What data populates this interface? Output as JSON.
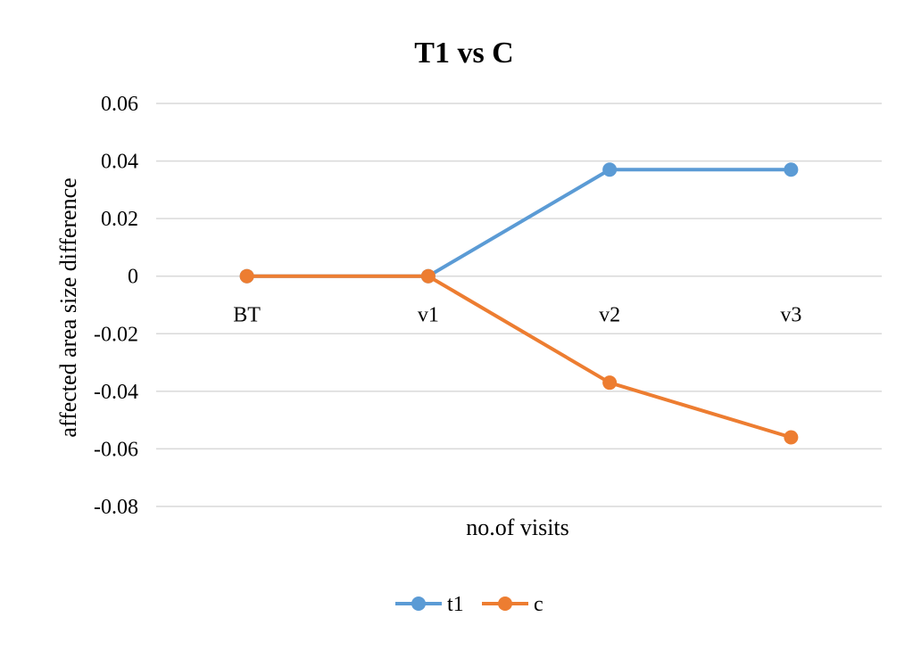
{
  "chart_data": {
    "type": "line",
    "title": "T1 vs C",
    "xlabel": "no.of visits",
    "ylabel": "affected area size difference",
    "categories": [
      "BT",
      "v1",
      "v2",
      "v3"
    ],
    "yticks": [
      "0.06",
      "0.04",
      "0.02",
      "0",
      "-0.02",
      "-0.04",
      "-0.06",
      "-0.08"
    ],
    "ylim": [
      -0.08,
      0.06
    ],
    "grid": true,
    "legend_position": "bottom",
    "series": [
      {
        "name": "t1",
        "values": [
          0,
          0,
          0.037,
          0.037
        ],
        "color": "#5b9bd5"
      },
      {
        "name": "c",
        "values": [
          0,
          0,
          -0.037,
          -0.056
        ],
        "color": "#ed7d31"
      }
    ]
  }
}
